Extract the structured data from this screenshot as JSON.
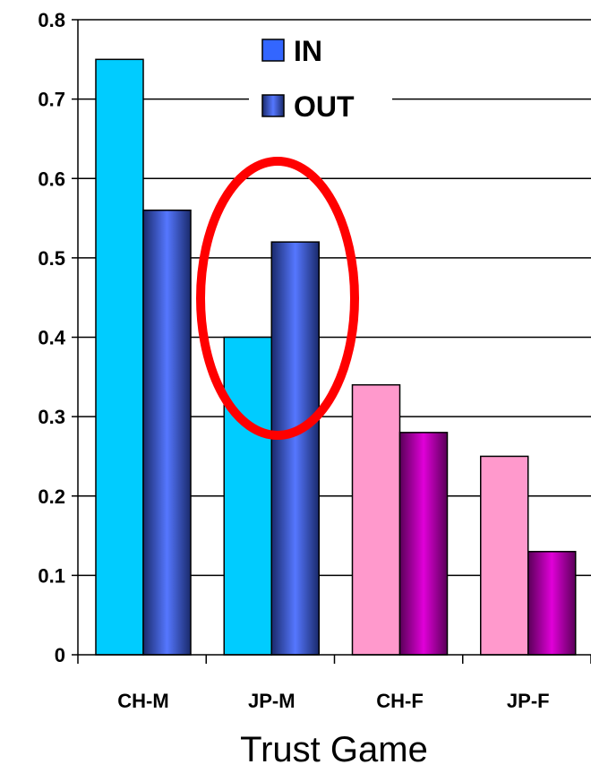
{
  "chart_data": {
    "type": "bar",
    "xlabel": "Trust Game",
    "ylabel": "",
    "ylim": [
      0,
      0.8
    ],
    "yticks": [
      "0",
      "0.1",
      "0.2",
      "0.3",
      "0.4",
      "0.5",
      "0.6",
      "0.7",
      "0.8"
    ],
    "grid": true,
    "legend_position": "top",
    "categories": [
      "CH-M",
      "JP-M",
      "CH-F",
      "JP-F"
    ],
    "series": [
      {
        "name": "IN",
        "values": [
          0.75,
          0.4,
          0.34,
          0.25
        ]
      },
      {
        "name": "OUT",
        "values": [
          0.56,
          0.52,
          0.28,
          0.13
        ]
      }
    ],
    "colors": {
      "in_male": "#00ccff",
      "in_female": "#ff99cc",
      "out_male_edge": "#1a2a6b",
      "out_male_center": "#5577ff",
      "out_female_edge": "#5a0058",
      "out_female_center": "#e000d8",
      "legend_in": "#3366ff",
      "highlight_ellipse": "#ff0000"
    },
    "annotations": [
      {
        "shape": "ellipse",
        "target_category": "JP-M",
        "color": "#ff0000"
      }
    ]
  }
}
